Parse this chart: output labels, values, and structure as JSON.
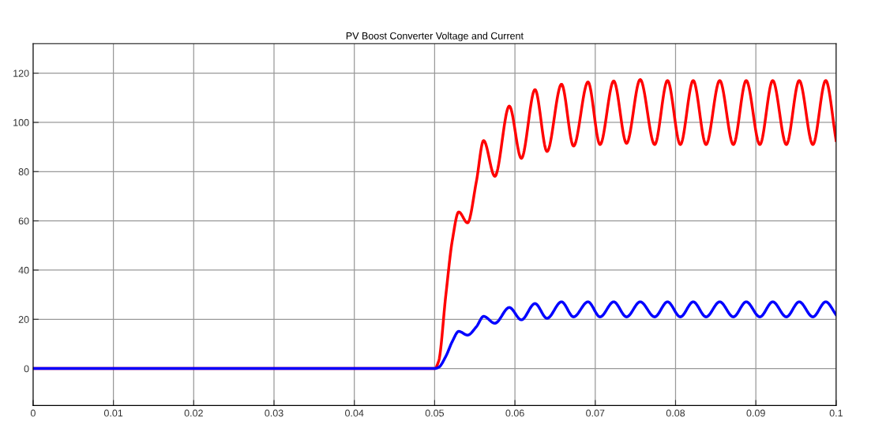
{
  "chart_data": {
    "type": "line",
    "title": "PV Boost Converter Voltage and Current",
    "x": [
      0,
      0.05,
      0.0505,
      0.0514,
      0.0522,
      0.053,
      0.0541,
      0.0552,
      0.0561,
      0.0575,
      0.0593,
      0.0608,
      0.0625,
      0.064,
      0.0658,
      0.0673,
      0.0691,
      0.0706,
      0.0723,
      0.0739,
      0.0756,
      0.0774,
      0.079,
      0.0806,
      0.0822,
      0.0838,
      0.0855,
      0.0872,
      0.0888,
      0.0905,
      0.0921,
      0.0938,
      0.0954,
      0.0971,
      0.0987,
      0.1
    ],
    "series": [
      {
        "color": "#ff0000",
        "values": [
          0,
          0,
          3,
          30,
          52,
          63.6,
          59.2,
          76,
          92.6,
          78.1,
          106.6,
          85.4,
          113.3,
          88.2,
          115.5,
          90.4,
          116.4,
          91,
          116.8,
          91.5,
          117.4,
          91,
          117,
          91,
          117,
          91,
          117,
          91,
          117,
          91,
          117,
          91,
          117,
          91,
          117,
          92.6
        ]
      },
      {
        "color": "#0000ff",
        "values": [
          0,
          0,
          0.5,
          5,
          11,
          15.1,
          13.6,
          17,
          21.2,
          18.4,
          24.8,
          19.8,
          26.4,
          20.4,
          27.1,
          21,
          27.1,
          21,
          27.1,
          21,
          27.1,
          21,
          27.1,
          21,
          27.1,
          21,
          27.1,
          21,
          27.1,
          21,
          27.1,
          21,
          27.1,
          21,
          27.1,
          21.8
        ]
      }
    ],
    "xlim": [
      0,
      0.1
    ],
    "ylim": [
      -15,
      132
    ],
    "xticks": [
      0,
      0.01,
      0.02,
      0.03,
      0.04,
      0.05,
      0.06,
      0.07,
      0.08,
      0.09,
      0.1
    ],
    "yticks": [
      0,
      20,
      40,
      60,
      80,
      100,
      120
    ],
    "grid": true,
    "line_style": "solid",
    "marker": "none"
  }
}
